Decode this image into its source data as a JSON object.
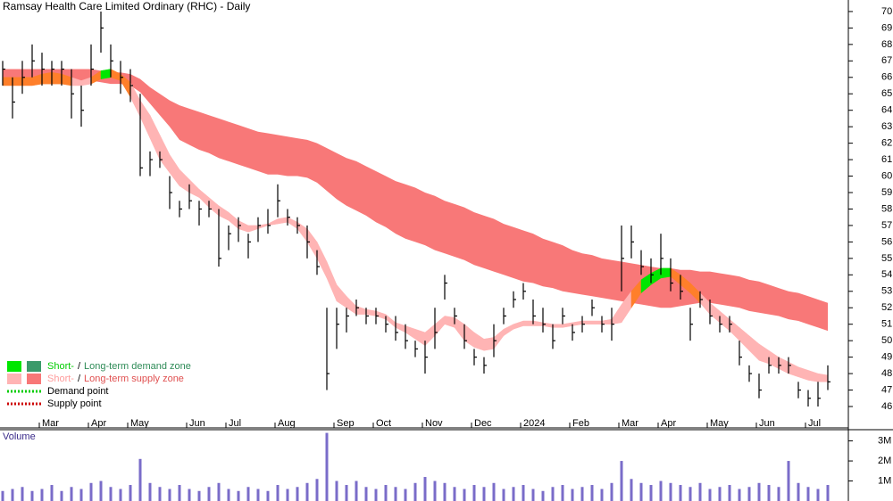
{
  "chart_data": {
    "type": "ohlc",
    "title": "Ramsay Health Care Limited Ordinary (RHC) - Daily",
    "categories": [
      null,
      null,
      null,
      null,
      "Mar",
      null,
      null,
      null,
      null,
      "Apr",
      null,
      null,
      null,
      "May",
      null,
      null,
      null,
      null,
      null,
      "Jun",
      null,
      null,
      null,
      "Jul",
      null,
      null,
      null,
      null,
      "Aug",
      null,
      null,
      null,
      null,
      null,
      "Sep",
      null,
      null,
      null,
      "Oct",
      null,
      null,
      null,
      null,
      "Nov",
      null,
      null,
      null,
      null,
      "Dec",
      null,
      null,
      null,
      null,
      "2024",
      null,
      null,
      null,
      null,
      "Feb",
      null,
      null,
      null,
      null,
      "Mar",
      null,
      null,
      null,
      "Apr",
      null,
      null,
      null,
      null,
      "May",
      null,
      null,
      null,
      null,
      "Jun",
      null,
      null,
      null,
      null,
      "Jul",
      null,
      null
    ],
    "price": {
      "color": "#000000",
      "high": [
        67,
        66,
        67,
        68,
        67.5,
        67,
        67,
        66.5,
        65.5,
        68,
        70,
        68,
        67,
        66.5,
        65,
        61.5,
        61.5,
        60,
        58.5,
        59.5,
        58.5,
        58.5,
        58,
        57,
        57.5,
        56.5,
        57.5,
        58,
        59.5,
        58,
        57.5,
        57,
        55.5,
        52,
        52,
        52,
        52.5,
        52,
        52,
        51.5,
        51.5,
        51,
        50,
        50,
        52,
        54,
        52,
        51,
        49.5,
        49,
        51,
        52,
        53,
        53.5,
        52.5,
        52,
        51,
        52,
        51,
        51.5,
        52.5,
        51.5,
        52,
        57,
        57,
        55.5,
        55,
        56.5,
        55,
        54,
        52,
        53,
        52.5,
        51.5,
        51.5,
        50,
        48.5,
        48,
        49,
        49,
        49,
        47.5,
        47,
        47.5,
        48.5
      ],
      "low": [
        65.5,
        63.5,
        65,
        66,
        65.5,
        65.5,
        65.5,
        63.5,
        63,
        65.5,
        67.5,
        66,
        65,
        64.5,
        60,
        60,
        60.5,
        58,
        57.5,
        58,
        57,
        57.5,
        54.5,
        55.5,
        56,
        55,
        56,
        56.5,
        57.5,
        57,
        56.5,
        55,
        54,
        47,
        49.5,
        50.5,
        51.5,
        51,
        51,
        50.5,
        50,
        49.5,
        49,
        48,
        49.5,
        52.5,
        51,
        49.5,
        48.5,
        48,
        49,
        51,
        52,
        52.5,
        51,
        50.5,
        49.5,
        51,
        50,
        50.5,
        51.5,
        50.5,
        50,
        53,
        55,
        54,
        53.5,
        54,
        53,
        52.5,
        50,
        52,
        51,
        50.5,
        50.5,
        48.5,
        47.5,
        46.5,
        48,
        48,
        48,
        46.5,
        46,
        46,
        47
      ],
      "close": [
        66.5,
        64.5,
        66,
        67,
        66.5,
        66.5,
        66.5,
        65,
        64,
        66.5,
        69,
        67,
        66,
        65.5,
        60.5,
        61,
        61,
        59,
        58,
        58.5,
        58,
        58,
        55,
        56.5,
        57,
        56,
        57,
        57,
        58.5,
        57.5,
        57,
        56,
        54.5,
        48,
        51,
        51.5,
        52,
        51.5,
        51.5,
        51,
        50.5,
        50,
        49.5,
        49,
        50.5,
        53.5,
        51.5,
        50,
        49,
        48.5,
        50,
        51.5,
        52.5,
        53,
        51.5,
        51,
        50,
        51.5,
        50.5,
        51,
        52,
        51,
        51,
        55,
        56,
        54.5,
        54,
        55,
        53.5,
        53,
        51,
        52.5,
        51.5,
        51,
        51,
        49,
        48,
        47,
        48.5,
        48.5,
        48.5,
        47,
        46.5,
        46.5,
        47.5
      ]
    },
    "bands": {
      "long_upper": [
        66.5,
        66.5,
        66.5,
        66.5,
        66.5,
        66.5,
        66.5,
        66.5,
        66.5,
        66.5,
        66.4,
        66.3,
        66.3,
        66.2,
        65.9,
        65.4,
        65.0,
        64.6,
        64.3,
        64.1,
        63.9,
        63.7,
        63.5,
        63.3,
        63.1,
        62.9,
        62.7,
        62.6,
        62.5,
        62.4,
        62.3,
        62.2,
        62.0,
        61.7,
        61.4,
        61.1,
        60.9,
        60.6,
        60.3,
        60.0,
        59.7,
        59.5,
        59.3,
        59.0,
        58.8,
        58.5,
        58.3,
        58.1,
        57.8,
        57.6,
        57.4,
        57.1,
        56.9,
        56.7,
        56.5,
        56.2,
        56.0,
        55.8,
        55.5,
        55.3,
        55.2,
        55.0,
        54.9,
        54.8,
        54.7,
        54.6,
        54.5,
        54.4,
        54.4,
        54.3,
        54.3,
        54.2,
        54.2,
        54.1,
        54.0,
        53.9,
        53.7,
        53.6,
        53.4,
        53.2,
        53.0,
        52.9,
        52.7,
        52.5,
        52.3
      ],
      "long_lower": [
        65.5,
        65.5,
        65.6,
        65.6,
        65.6,
        65.7,
        65.7,
        65.7,
        65.8,
        65.8,
        65.7,
        65.6,
        65.6,
        65.5,
        65.1,
        64.4,
        63.7,
        63.0,
        62.2,
        61.9,
        61.6,
        61.4,
        61.1,
        60.9,
        60.7,
        60.5,
        60.3,
        60.1,
        60.1,
        60.0,
        60.0,
        59.9,
        59.6,
        59.1,
        58.6,
        58.2,
        57.9,
        57.6,
        57.2,
        56.9,
        56.5,
        56.2,
        56.0,
        55.8,
        55.5,
        55.3,
        55.1,
        54.9,
        54.6,
        54.4,
        54.2,
        54.0,
        53.8,
        53.6,
        53.5,
        53.3,
        53.2,
        53.0,
        52.9,
        52.8,
        52.7,
        52.6,
        52.5,
        52.4,
        52.3,
        52.2,
        52.1,
        52.0,
        52.0,
        52.1,
        52.2,
        52.3,
        52.3,
        52.2,
        52.1,
        52.0,
        51.8,
        51.7,
        51.6,
        51.5,
        51.3,
        51.2,
        51.0,
        50.8,
        50.6
      ],
      "short_upper": [
        66.0,
        66.0,
        66.0,
        66.0,
        66.2,
        66.3,
        66.2,
        66.0,
        65.8,
        66.0,
        66.4,
        66.5,
        66.2,
        65.7,
        64.6,
        63.7,
        62.5,
        61.3,
        60.4,
        59.8,
        59.2,
        58.7,
        58.2,
        57.8,
        57.3,
        57.0,
        57.0,
        57.1,
        57.4,
        57.5,
        57.2,
        56.8,
        56.0,
        54.8,
        53.4,
        52.7,
        52.1,
        51.9,
        51.8,
        51.6,
        51.1,
        50.9,
        50.7,
        50.5,
        51.0,
        51.5,
        51.4,
        51.0,
        50.5,
        50.1,
        50.2,
        50.7,
        51.0,
        51.2,
        51.2,
        51.1,
        51.0,
        51.0,
        51.1,
        51.2,
        51.2,
        51.2,
        51.3,
        52.2,
        53.0,
        53.7,
        54.1,
        54.4,
        54.4,
        54.0,
        53.5,
        52.9,
        52.3,
        51.8,
        51.3,
        50.8,
        50.3,
        49.8,
        49.4,
        49.0,
        48.7,
        48.4,
        48.2,
        48.0,
        47.9
      ],
      "short_lower": [
        65.5,
        65.5,
        65.5,
        65.5,
        65.6,
        65.6,
        65.6,
        65.5,
        65.5,
        65.6,
        65.9,
        66.0,
        65.8,
        64.8,
        63.6,
        62.3,
        61.0,
        60.2,
        59.4,
        59.0,
        58.7,
        58.1,
        57.6,
        57.3,
        56.8,
        56.6,
        56.8,
        57.0,
        57.1,
        57.2,
        56.8,
        56.0,
        55.0,
        53.8,
        52.4,
        52.0,
        51.6,
        51.6,
        51.5,
        51.3,
        50.8,
        50.5,
        50.1,
        49.7,
        50.3,
        51.0,
        50.8,
        50.0,
        49.6,
        49.4,
        49.5,
        50.3,
        50.7,
        50.9,
        50.9,
        50.9,
        50.8,
        50.8,
        50.9,
        51.0,
        51.0,
        51.0,
        51.0,
        51.1,
        52.0,
        52.9,
        53.4,
        53.8,
        53.9,
        53.4,
        52.9,
        52.3,
        51.6,
        51.1,
        50.6,
        50.0,
        49.4,
        48.8,
        48.6,
        48.3,
        48.0,
        47.8,
        47.6,
        47.5,
        47.5
      ],
      "long_color": "#f87878",
      "short_color": "#ffb4b4",
      "overlap_color": "#ff7f2a",
      "demand_color": "#00e600"
    },
    "volume": {
      "label": "Volume",
      "color": "#7a6cc9",
      "values": [
        500000,
        600000,
        700000,
        500000,
        600000,
        800000,
        500000,
        700000,
        600000,
        900000,
        1000000,
        700000,
        600000,
        800000,
        2100000,
        900000,
        700000,
        600000,
        800000,
        600000,
        500000,
        700000,
        900000,
        600000,
        500000,
        700000,
        600000,
        500000,
        800000,
        600000,
        700000,
        900000,
        1100000,
        3400000,
        1000000,
        800000,
        1000000,
        700000,
        600000,
        800000,
        700000,
        600000,
        900000,
        1200000,
        1000000,
        900000,
        700000,
        600000,
        800000,
        700000,
        900000,
        600000,
        700000,
        800000,
        600000,
        500000,
        700000,
        800000,
        600000,
        700000,
        800000,
        600000,
        900000,
        2000000,
        1100000,
        900000,
        800000,
        1000000,
        900000,
        800000,
        700000,
        900000,
        600000,
        700000,
        800000,
        600000,
        700000,
        900000,
        800000,
        700000,
        2000000,
        900000,
        700000,
        600000,
        800000
      ],
      "ylim": [
        0,
        3560000
      ],
      "yticks": [
        {
          "value": 1000000,
          "label": "1M"
        },
        {
          "value": 2000000,
          "label": "2M"
        },
        {
          "value": 3000000,
          "label": "3M"
        }
      ]
    },
    "ylim": [
      44.7,
      70.7
    ],
    "yticks": [
      46,
      47,
      48,
      49,
      50,
      51,
      52,
      53,
      54,
      55,
      56,
      57,
      58,
      59,
      60,
      61,
      62,
      63,
      64,
      65,
      66,
      67,
      68,
      69,
      70
    ],
    "legend": [
      {
        "short": "Short-",
        "sep": "/",
        "long": "Long-term demand zone",
        "short_color": "#00e600",
        "long_color": "#3a9a6a",
        "text_short_color": "#00cc00",
        "text_long_color": "#2e8b57"
      },
      {
        "short": "Short-",
        "sep": "/",
        "long": "Long-term supply zone",
        "short_color": "#ffb4b4",
        "long_color": "#f87878",
        "text_short_color": "#ff9c9c",
        "text_long_color": "#e05050"
      }
    ],
    "points": [
      {
        "label": "Demand point",
        "color": "#00cc00"
      },
      {
        "label": "Supply point",
        "color": "#cc0000"
      }
    ]
  }
}
